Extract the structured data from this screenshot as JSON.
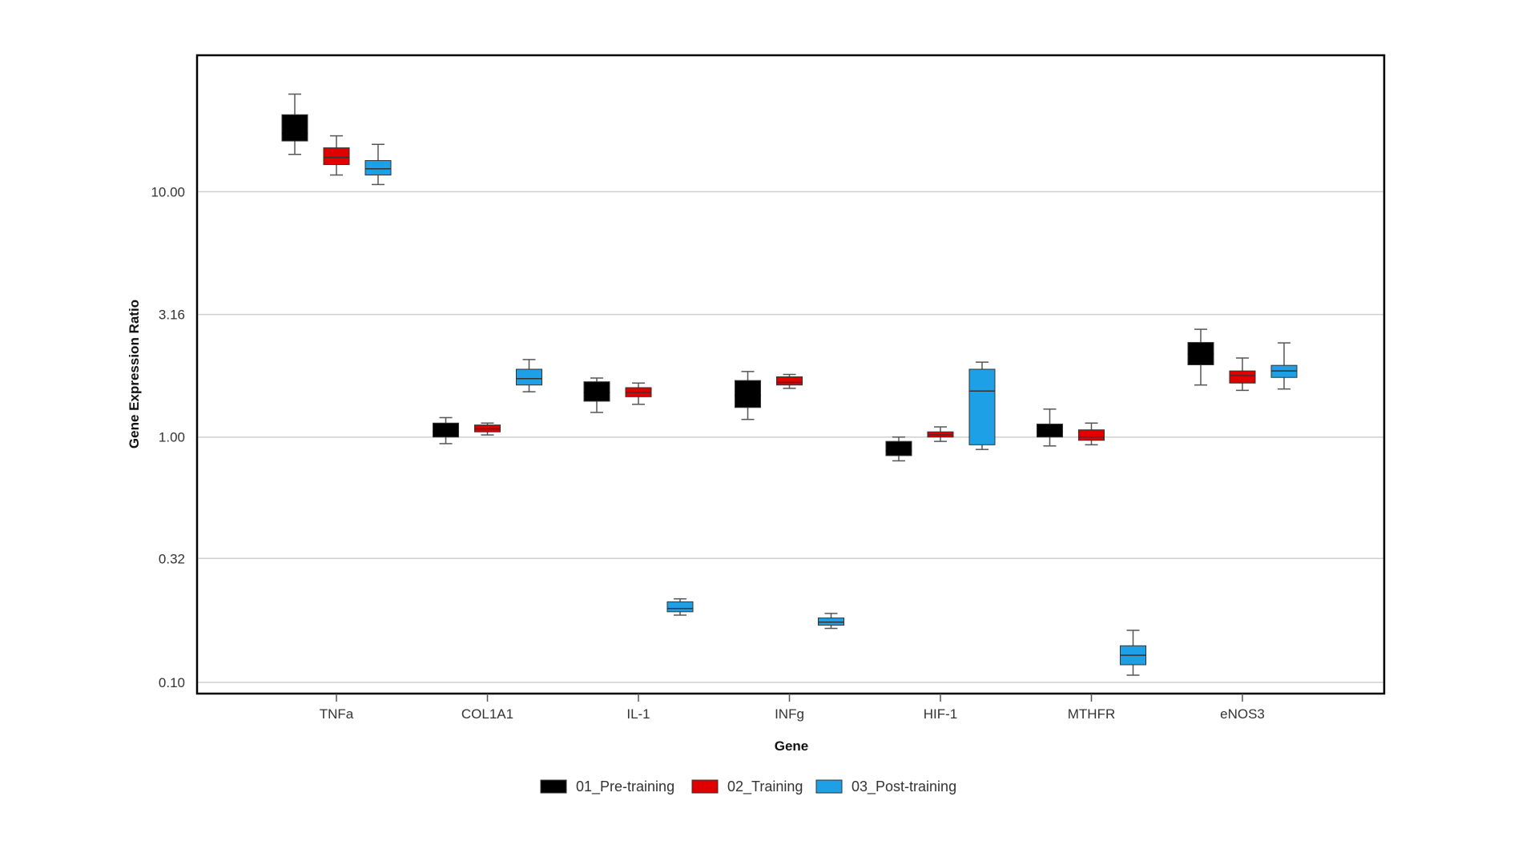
{
  "chart_data": {
    "type": "box",
    "xlabel": "Gene",
    "ylabel": "Gene Expression Ratio",
    "yscale": "log10",
    "ylim": [
      0.09,
      36
    ],
    "yticks": [
      0.1,
      0.32,
      1.0,
      3.16,
      10.0
    ],
    "ytick_labels": [
      "0.10",
      "0.32",
      "1.00",
      "3.16",
      "10.00"
    ],
    "grid": "horizontal",
    "legend_position": "bottom-center",
    "categories": [
      "TNFa",
      "COL1A1",
      "IL-1",
      "INFg",
      "HIF-1",
      "MTHFR",
      "eNOS3"
    ],
    "series": [
      {
        "name": "01_Pre-training",
        "color": "#000000",
        "boxes": [
          {
            "min": 14.2,
            "q1": 16.1,
            "median": 17.3,
            "q3": 20.6,
            "max": 25.0
          },
          {
            "min": 0.94,
            "q1": 1.0,
            "median": 1.05,
            "q3": 1.14,
            "max": 1.2
          },
          {
            "min": 1.26,
            "q1": 1.4,
            "median": 1.52,
            "q3": 1.68,
            "max": 1.74
          },
          {
            "min": 1.18,
            "q1": 1.32,
            "median": 1.48,
            "q3": 1.7,
            "max": 1.85
          },
          {
            "min": 0.8,
            "q1": 0.84,
            "median": 0.88,
            "q3": 0.96,
            "max": 1.0
          },
          {
            "min": 0.92,
            "q1": 1.0,
            "median": 1.05,
            "q3": 1.13,
            "max": 1.3
          },
          {
            "min": 1.63,
            "q1": 1.97,
            "median": 2.18,
            "q3": 2.43,
            "max": 2.75
          }
        ]
      },
      {
        "name": "02_Training",
        "color": "#e00000",
        "boxes": [
          {
            "min": 11.7,
            "q1": 12.9,
            "median": 13.8,
            "q3": 15.1,
            "max": 16.9
          },
          {
            "min": 1.02,
            "q1": 1.05,
            "median": 1.08,
            "q3": 1.12,
            "max": 1.14
          },
          {
            "min": 1.36,
            "q1": 1.46,
            "median": 1.52,
            "q3": 1.59,
            "max": 1.66
          },
          {
            "min": 1.58,
            "q1": 1.63,
            "median": 1.67,
            "q3": 1.76,
            "max": 1.8
          },
          {
            "min": 0.96,
            "q1": 1.0,
            "median": 1.02,
            "q3": 1.05,
            "max": 1.1
          },
          {
            "min": 0.93,
            "q1": 0.97,
            "median": 1.0,
            "q3": 1.07,
            "max": 1.14
          },
          {
            "min": 1.55,
            "q1": 1.66,
            "median": 1.78,
            "q3": 1.86,
            "max": 2.1
          }
        ]
      },
      {
        "name": "03_Post-training",
        "color": "#1ea0e6",
        "boxes": [
          {
            "min": 10.7,
            "q1": 11.7,
            "median": 12.4,
            "q3": 13.4,
            "max": 15.6
          },
          {
            "min": 1.53,
            "q1": 1.63,
            "median": 1.73,
            "q3": 1.89,
            "max": 2.07
          },
          {
            "min": 0.188,
            "q1": 0.194,
            "median": 0.2,
            "q3": 0.213,
            "max": 0.219
          },
          {
            "min": 0.166,
            "q1": 0.171,
            "median": 0.176,
            "q3": 0.183,
            "max": 0.191
          },
          {
            "min": 0.89,
            "q1": 0.93,
            "median": 1.54,
            "q3": 1.89,
            "max": 2.02
          },
          {
            "min": 0.107,
            "q1": 0.118,
            "median": 0.129,
            "q3": 0.141,
            "max": 0.163
          },
          {
            "min": 1.57,
            "q1": 1.75,
            "median": 1.86,
            "q3": 1.96,
            "max": 2.42
          }
        ]
      }
    ]
  }
}
